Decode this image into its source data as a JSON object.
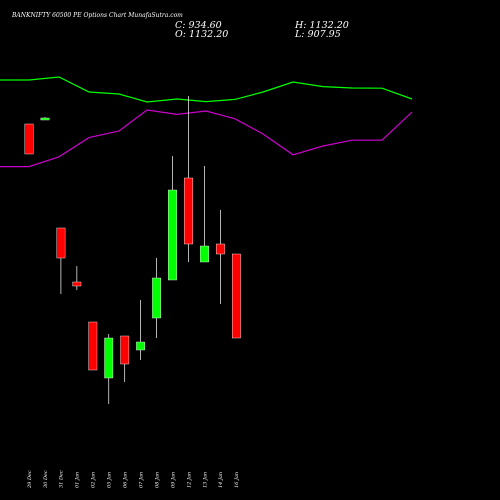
{
  "header": {
    "title": "BANKNIFTY 60500  PE Options  Chart MunafaSutra.com",
    "close": "C: 934.60",
    "open": "O: 1132.20",
    "high": "H: 1132.20",
    "low": "L: 907.95"
  },
  "chart_data": {
    "type": "candlestick",
    "categories": [
      "29 Dec",
      "30 Dec",
      "31 Dec",
      "01 Jan",
      "02 Jan",
      "05 Jan",
      "06 Jan",
      "07 Jan",
      "08 Jan",
      "09 Jan",
      "12 Jan",
      "13 Jan",
      "14 Jan",
      "16 Jan"
    ],
    "colors": {
      "up": "#00ff00",
      "down": "#ff0000",
      "line_upper": "#00ff00",
      "line_lower": "#cc00cc",
      "wick": "#ffffff"
    },
    "candles": [
      {
        "open": 3050,
        "high": 3050,
        "close": 2900,
        "low": 2900,
        "up": false
      },
      {
        "open": 3070,
        "high": 3085,
        "close": 3080,
        "low": 3070,
        "up": true
      },
      {
        "open": 2530,
        "high": 2530,
        "close": 2380,
        "low": 2200,
        "up": false
      },
      {
        "open": 2260,
        "high": 2340,
        "close": 2240,
        "low": 2220,
        "up": false
      },
      {
        "open": 2060,
        "high": 2060,
        "close": 1820,
        "low": 1820,
        "up": false
      },
      {
        "open": 1780,
        "high": 2000,
        "close": 1980,
        "low": 1650,
        "up": true
      },
      {
        "open": 1990,
        "high": 1990,
        "close": 1850,
        "low": 1760,
        "up": false
      },
      {
        "open": 1920,
        "high": 2170,
        "close": 1960,
        "low": 1870,
        "up": true
      },
      {
        "open": 2080,
        "high": 2380,
        "close": 2280,
        "low": 1980,
        "up": true
      },
      {
        "open": 2270,
        "high": 2890,
        "close": 2720,
        "low": 2270,
        "up": true
      },
      {
        "open": 2780,
        "high": 3190,
        "close": 2450,
        "low": 2360,
        "up": false
      },
      {
        "open": 2360,
        "high": 2840,
        "close": 2440,
        "low": 2360,
        "up": true
      },
      {
        "open": 2450,
        "high": 2620,
        "close": 2400,
        "low": 2150,
        "up": false
      },
      {
        "open": 2400,
        "high": 2400,
        "close": 1980,
        "low": 1980,
        "up": false
      }
    ],
    "upper_line": [
      9100,
      9100,
      9250,
      8500,
      8400,
      8000,
      8150,
      8020,
      8130,
      8500,
      9000,
      8770,
      8700,
      8690,
      8150
    ],
    "lower_line": [
      4770,
      4770,
      5260,
      6220,
      6550,
      7600,
      7380,
      7550,
      7160,
      6400,
      5360,
      5800,
      6090,
      6090,
      7500
    ]
  }
}
